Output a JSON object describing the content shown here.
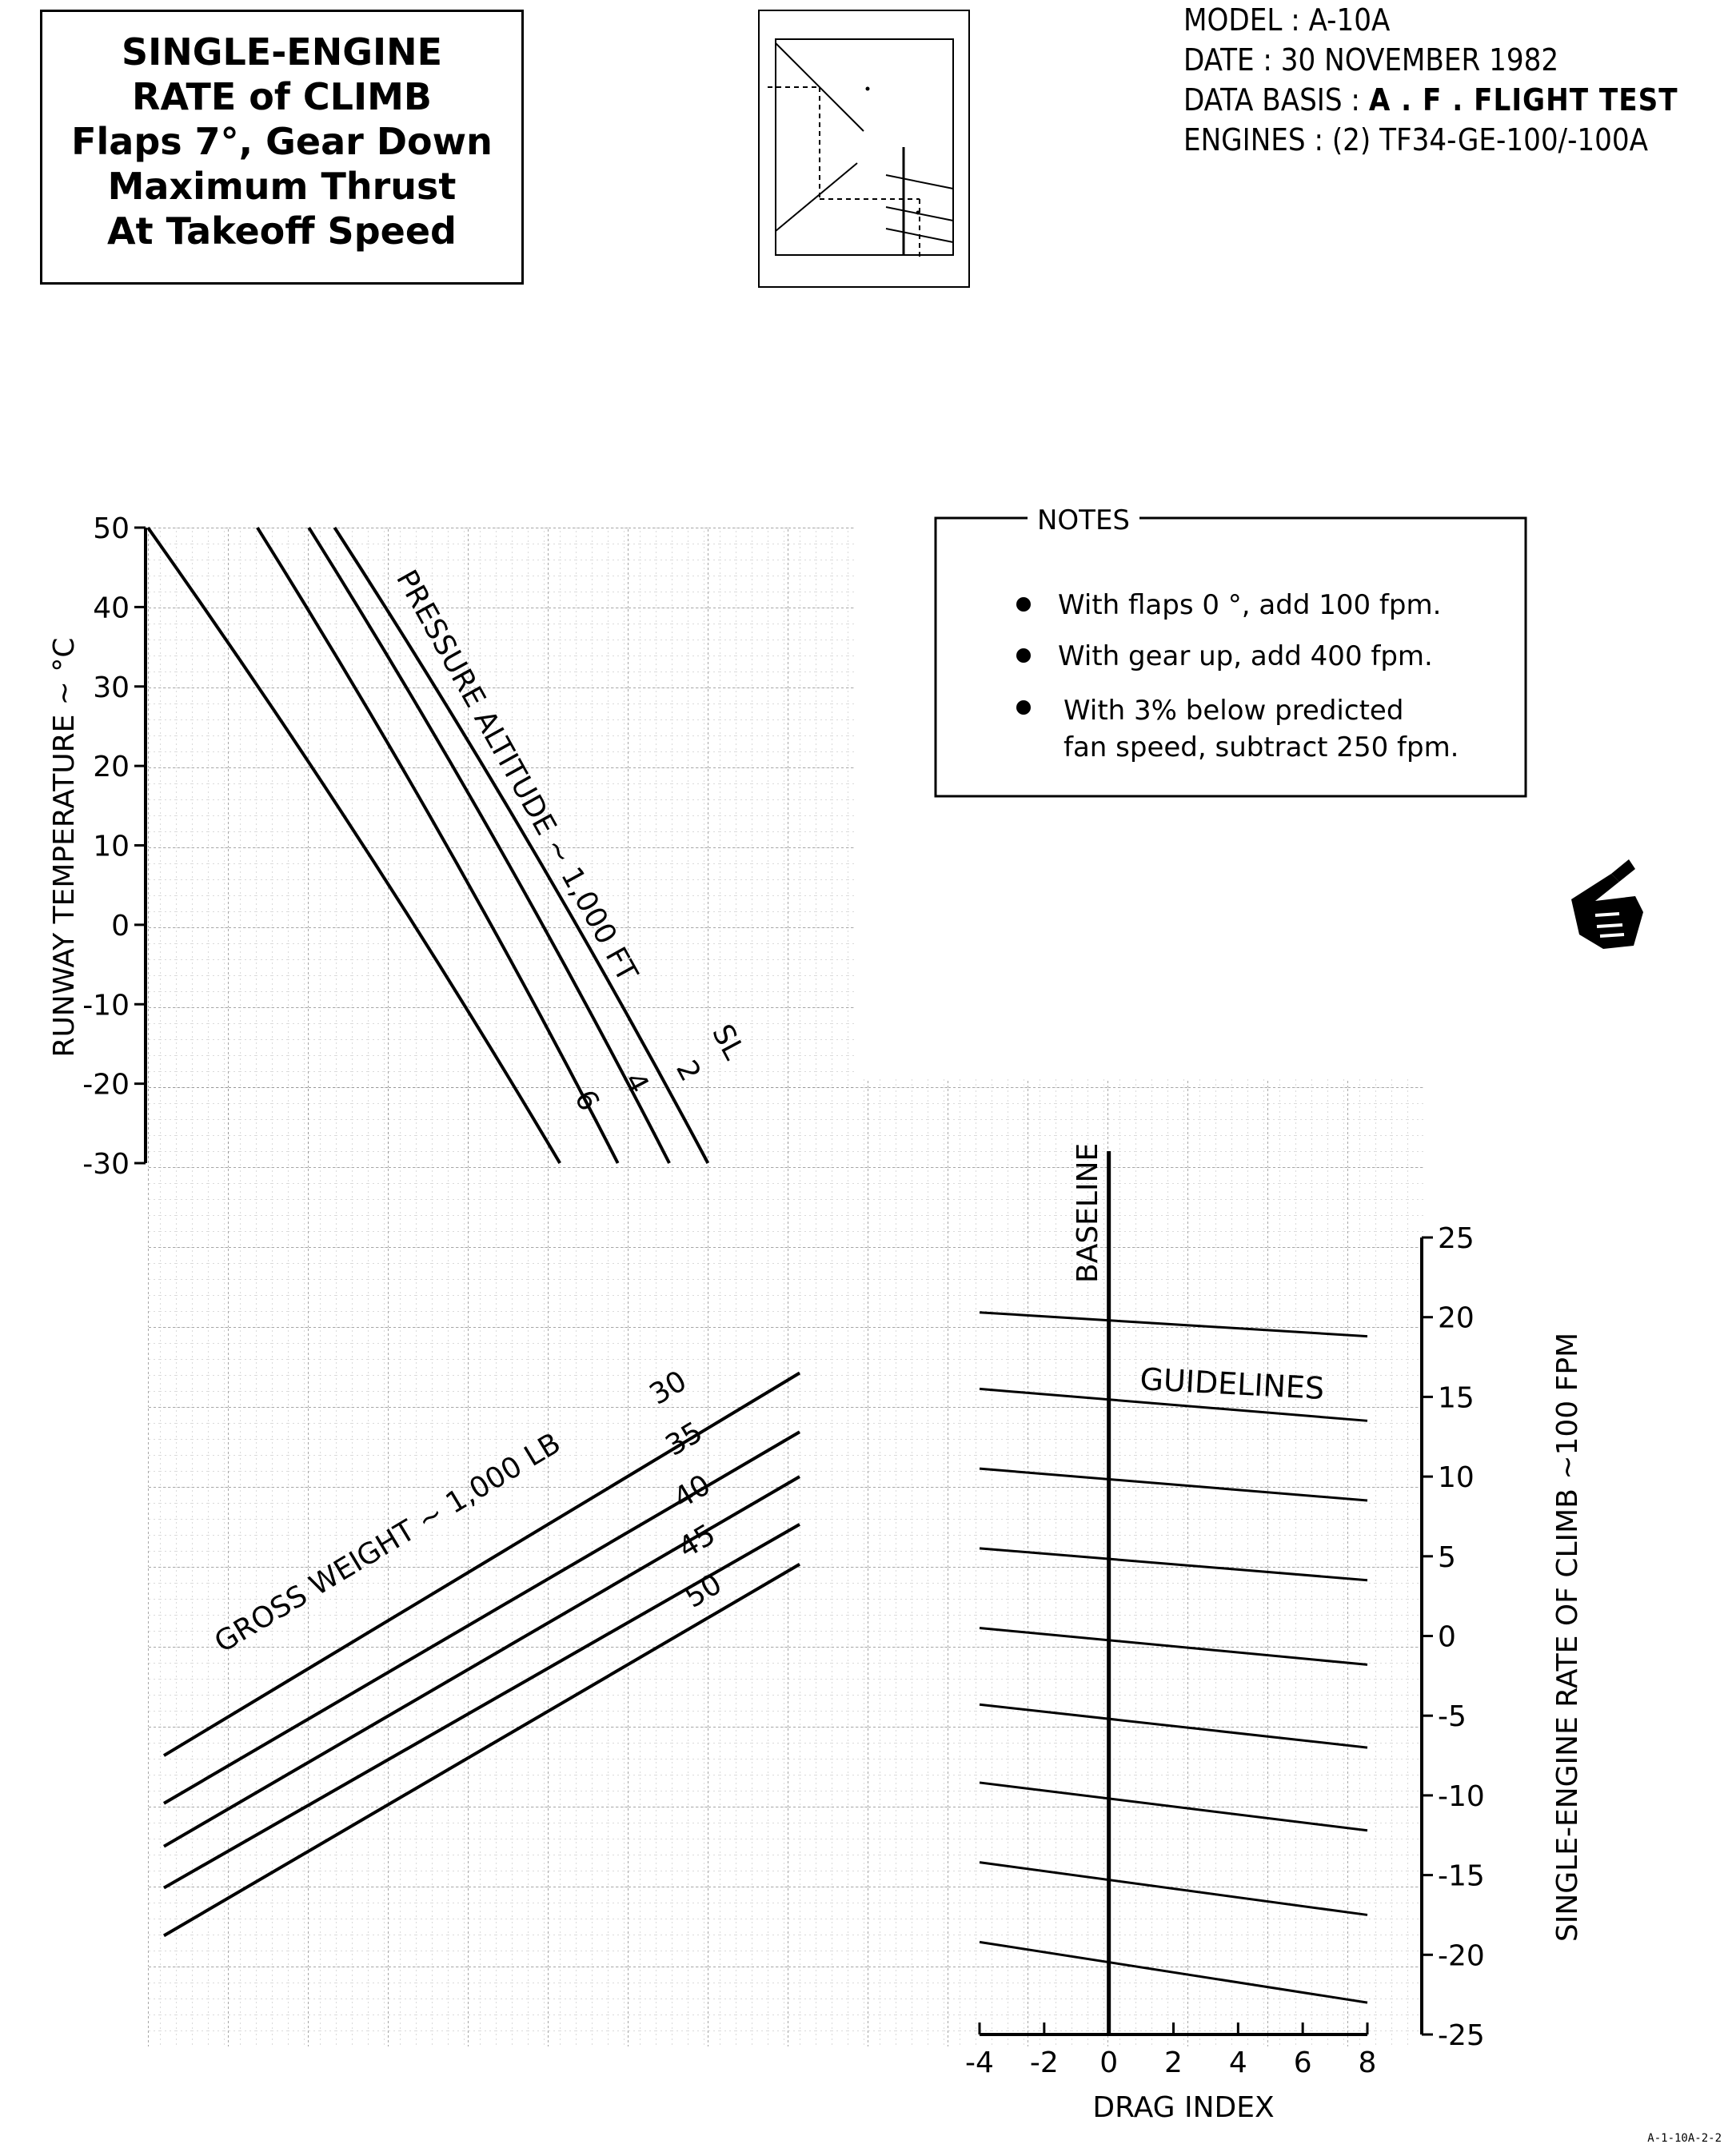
{
  "title_box": {
    "line1": "SINGLE-ENGINE",
    "line2": "RATE of CLIMB",
    "line3": "Flaps 7°, Gear Down",
    "line4": "Maximum Thrust",
    "line5": "At Takeoff Speed"
  },
  "meta": {
    "model_label": "MODEL : A-10A",
    "date_label": "DATE : 30 NOVEMBER 1982",
    "data_basis_prefix": "DATA BASIS : ",
    "data_basis_value": "A . F .  FLIGHT TEST",
    "engines_label": "ENGINES : (2) TF34-GE-100/-100A"
  },
  "notes": {
    "heading": "NOTES",
    "items": [
      "With flaps 0 °, add 100 fpm.",
      "With gear up, add 400 fpm.",
      "With 3% below predicted",
      "fan speed, subtract 250 fpm."
    ]
  },
  "figure_ref": "A-1-10A-2-2",
  "colors": {
    "ink": "#000000",
    "grid": "#9a9a9a",
    "paper": "#ffffff"
  },
  "chart_data": [
    {
      "type": "line",
      "panel": "runway-temperature",
      "ylabel": "RUNWAY TEMPERATURE ~ °C",
      "ylim": [
        -30,
        50
      ],
      "yticks": [
        "50",
        "40",
        "30",
        "20",
        "10",
        "0",
        "-10",
        "-20",
        "-30"
      ],
      "curve_family_label": "PRESSURE ALTITUDE ~ 1,000 FT",
      "series": [
        {
          "name": "SL",
          "points": [
            [
              0.29,
              50
            ],
            [
              0.87,
              -30
            ]
          ]
        },
        {
          "name": "2",
          "points": [
            [
              0.25,
              50
            ],
            [
              0.81,
              -30
            ]
          ]
        },
        {
          "name": "4",
          "points": [
            [
              0.17,
              50
            ],
            [
              0.73,
              -30
            ]
          ]
        },
        {
          "name": "6",
          "points": [
            [
              0.0,
              50
            ],
            [
              0.64,
              -30
            ]
          ]
        }
      ]
    },
    {
      "type": "line",
      "panel": "gross-weight",
      "curve_family_label": "GROSS WEIGHT ~ 1,000 LB",
      "series": [
        {
          "name": "30",
          "points": [
            [
              0.0,
              -7.5
            ],
            [
              1.0,
              16.5
            ]
          ]
        },
        {
          "name": "35",
          "points": [
            [
              0.0,
              -10.5
            ],
            [
              1.0,
              12.8
            ]
          ]
        },
        {
          "name": "40",
          "points": [
            [
              0.0,
              -13.2
            ],
            [
              1.0,
              10.0
            ]
          ]
        },
        {
          "name": "45",
          "points": [
            [
              0.0,
              -15.8
            ],
            [
              1.0,
              7.0
            ]
          ]
        },
        {
          "name": "50",
          "points": [
            [
              0.0,
              -18.8
            ],
            [
              1.0,
              4.5
            ]
          ]
        }
      ]
    },
    {
      "type": "line",
      "panel": "drag-index",
      "xlabel": "DRAG INDEX",
      "ylabel": "SINGLE-ENGINE RATE OF CLIMB ~100 FPM",
      "xlim": [
        -4,
        8
      ],
      "ylim": [
        -25,
        25
      ],
      "xticks": [
        "-4",
        "-2",
        "0",
        "2",
        "4",
        "6",
        "8"
      ],
      "yticks": [
        "25",
        "20",
        "15",
        "10",
        "5",
        "0",
        "-5",
        "-10",
        "-15",
        "-20",
        "-25"
      ],
      "baseline_label": "BASELINE",
      "guidelines_label": "GUIDELINES",
      "baseline_x": 0,
      "guidelines": [
        {
          "at_baseline": 20,
          "x": [
            -4,
            8
          ],
          "y": [
            20.3,
            18.8
          ]
        },
        {
          "at_baseline": 15,
          "x": [
            -4,
            8
          ],
          "y": [
            15.5,
            13.5
          ]
        },
        {
          "at_baseline": 10,
          "x": [
            -4,
            8
          ],
          "y": [
            10.5,
            8.5
          ]
        },
        {
          "at_baseline": 5,
          "x": [
            -4,
            8
          ],
          "y": [
            5.5,
            3.5
          ]
        },
        {
          "at_baseline": 0,
          "x": [
            -4,
            8
          ],
          "y": [
            0.5,
            -1.8
          ]
        },
        {
          "at_baseline": -5,
          "x": [
            -4,
            8
          ],
          "y": [
            -4.3,
            -7.0
          ]
        },
        {
          "at_baseline": -10,
          "x": [
            -4,
            8
          ],
          "y": [
            -9.2,
            -12.2
          ]
        },
        {
          "at_baseline": -15,
          "x": [
            -4,
            8
          ],
          "y": [
            -14.2,
            -17.5
          ]
        },
        {
          "at_baseline": -20,
          "x": [
            -4,
            8
          ],
          "y": [
            -19.2,
            -23.0
          ]
        }
      ]
    }
  ]
}
